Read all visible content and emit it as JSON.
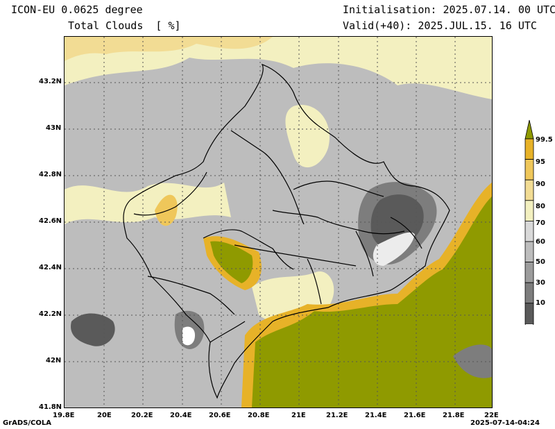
{
  "header": {
    "model": "ICON-EU 0.0625 degree",
    "field": "Total Clouds  [ %]",
    "init": "Initialisation: 2025.07.14. 00 UTC",
    "valid": "Valid(+40): 2025.JUL.15. 16 UTC"
  },
  "footer": {
    "left": "GrADS/COLA",
    "right": "2025-07-14-04:24"
  },
  "axes": {
    "lat_labels": [
      "43.2N",
      "43N",
      "42.8N",
      "42.6N",
      "42.4N",
      "42.2N",
      "42N",
      "41.8N"
    ],
    "lon_labels": [
      "19.8E",
      "20E",
      "20.2E",
      "20.4E",
      "20.6E",
      "20.8E",
      "21E",
      "21.2E",
      "21.4E",
      "21.6E",
      "21.8E",
      "22E"
    ]
  },
  "colorbar": {
    "labels": [
      "99.5",
      "95",
      "90",
      "80",
      "70",
      "60",
      "50",
      "30",
      "10"
    ],
    "colors": [
      "#8f9a00",
      "#e7b228",
      "#efc75a",
      "#f2dc94",
      "#f3f0c0",
      "#d9d9d9",
      "#bdbdbd",
      "#9c9c9c",
      "#7d7d7d",
      "#5a5a5a",
      "#ffffff"
    ]
  }
}
